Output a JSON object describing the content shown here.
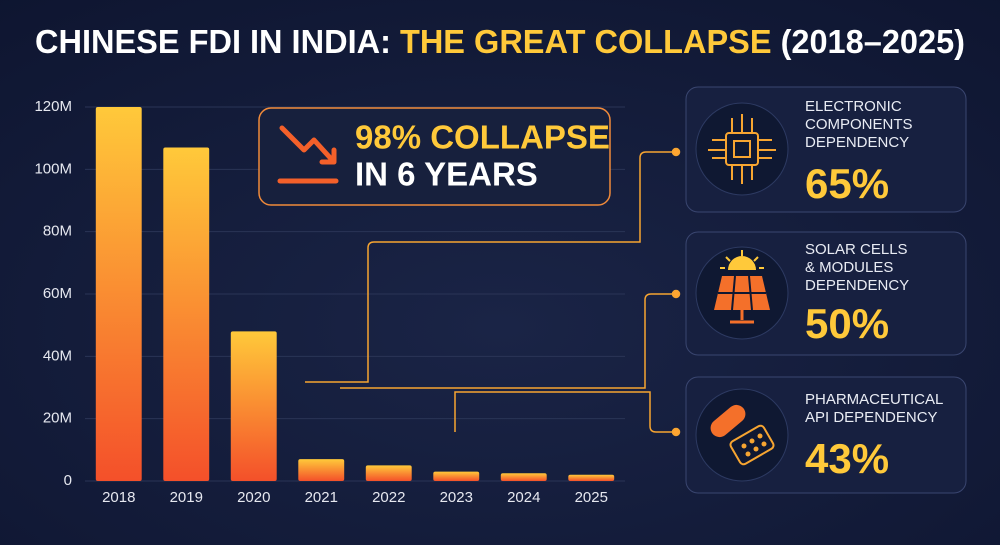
{
  "header": {
    "title_lead": "CHINESE FDI IN INDIA:",
    "title_highlight": "THE GREAT COLLAPSE",
    "title_tail": "(2018–2025)"
  },
  "chart_data": {
    "type": "bar",
    "categories": [
      "2018",
      "2019",
      "2020",
      "2021",
      "2022",
      "2023",
      "2024",
      "2025"
    ],
    "values": [
      120000000,
      107000000,
      48000000,
      7000000,
      5000000,
      3000000,
      2500000,
      2000000
    ],
    "ylim": [
      0,
      120000000
    ],
    "yticks": [
      0,
      {
        "value": 20000000,
        "label": "20M"
      },
      {
        "value": 40000000,
        "label": "40M"
      },
      {
        "value": 60000000,
        "label": "60M"
      },
      {
        "value": 80000000,
        "label": "80M"
      },
      {
        "value": 100000000,
        "label": "100M"
      },
      {
        "value": 120000000,
        "label": "120M"
      }
    ],
    "grid": true,
    "color_top": "#ffc93a",
    "color_bottom": "#f4502a"
  },
  "callout": {
    "line1": "98% COLLAPSE",
    "line2": "IN 6 YEARS"
  },
  "cards": [
    {
      "lines": [
        "ELECTRONIC",
        "COMPONENTS",
        "DEPENDENCY"
      ],
      "value": "65%"
    },
    {
      "lines": [
        "SOLAR CELLS",
        "& MODULES",
        "DEPENDENCY"
      ],
      "value": "50%"
    },
    {
      "lines": [
        "PHARMACEUTICAL",
        "API DEPENDENCY"
      ],
      "value": "43%"
    }
  ]
}
